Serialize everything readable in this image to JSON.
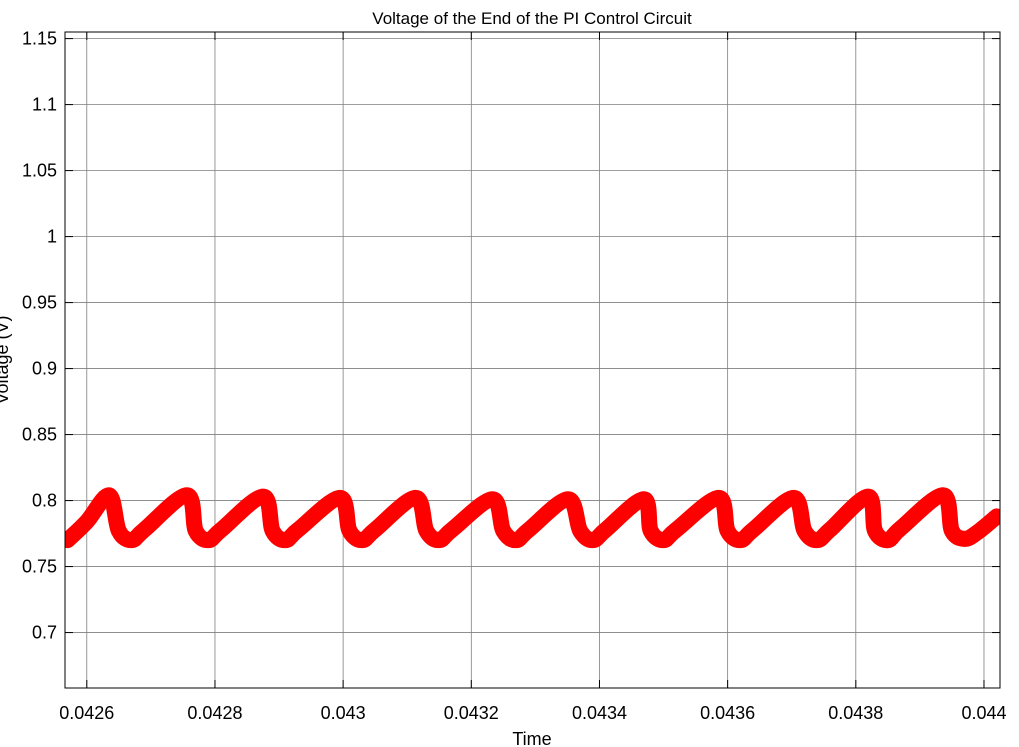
{
  "chart_data": {
    "type": "line",
    "title": "Voltage of the End of the PI Control Circuit",
    "xlabel": "Time",
    "ylabel": "Voltage (V)",
    "xlim": [
      0.042566,
      0.044025
    ],
    "ylim": [
      0.658,
      1.155
    ],
    "xticks": [
      0.0426,
      0.0428,
      0.043,
      0.0432,
      0.0434,
      0.0436,
      0.0438,
      0.044
    ],
    "xtick_labels": [
      "0.0426",
      "0.0428",
      "0.043",
      "0.0432",
      "0.0434",
      "0.0436",
      "0.0438",
      "0.044"
    ],
    "yticks": [
      0.7,
      0.75,
      0.8,
      0.85,
      0.9,
      0.95,
      1.0,
      1.05,
      1.1,
      1.15
    ],
    "ytick_labels": [
      "0.7",
      "0.75",
      "0.8",
      "0.85",
      "0.9",
      "0.95",
      "1",
      "1.05",
      "1.1",
      "1.15"
    ],
    "grid": true,
    "series": [
      {
        "color": "#ff0000",
        "x": [
          0.04257,
          0.0426,
          0.042635,
          0.04265,
          0.04267,
          0.04269,
          0.042756,
          0.04277,
          0.04279,
          0.04281,
          0.042875,
          0.04289,
          0.04291,
          0.04293,
          0.042995,
          0.04301,
          0.04303,
          0.04305,
          0.043113,
          0.04313,
          0.04315,
          0.04317,
          0.043233,
          0.04325,
          0.04327,
          0.04329,
          0.043351,
          0.04337,
          0.04339,
          0.04341,
          0.043469,
          0.04348,
          0.0435,
          0.04352,
          0.043586,
          0.0436,
          0.04362,
          0.04364,
          0.043703,
          0.04372,
          0.04374,
          0.04376,
          0.043819,
          0.04383,
          0.04385,
          0.04387,
          0.043936,
          0.04395,
          0.04397,
          0.04399,
          0.04402
        ],
        "y": [
          0.77,
          0.784,
          0.804,
          0.777,
          0.77,
          0.778,
          0.804,
          0.777,
          0.77,
          0.778,
          0.803,
          0.777,
          0.77,
          0.778,
          0.802,
          0.777,
          0.77,
          0.778,
          0.802,
          0.777,
          0.77,
          0.778,
          0.801,
          0.777,
          0.77,
          0.778,
          0.801,
          0.777,
          0.77,
          0.778,
          0.801,
          0.777,
          0.77,
          0.778,
          0.802,
          0.777,
          0.77,
          0.778,
          0.802,
          0.777,
          0.77,
          0.778,
          0.803,
          0.777,
          0.77,
          0.779,
          0.804,
          0.777,
          0.771,
          0.776,
          0.788
        ]
      }
    ]
  }
}
